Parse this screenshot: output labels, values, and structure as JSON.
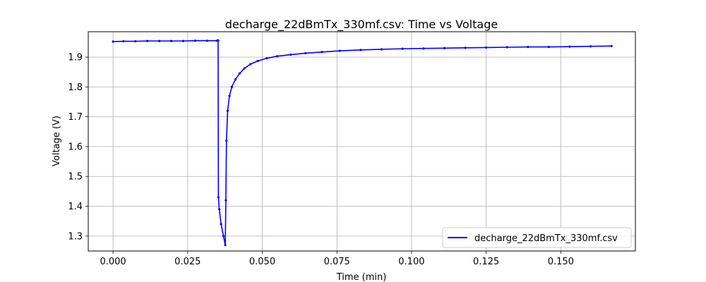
{
  "chart_data": {
    "type": "line",
    "title": "decharge_22dBmTx_330mf.csv: Time vs Voltage",
    "xlabel": "Time (min)",
    "ylabel": "Voltage (V)",
    "xlim": [
      -0.0083,
      0.175
    ],
    "ylim": [
      1.25,
      1.985
    ],
    "xticks": [
      0.0,
      0.025,
      0.05,
      0.075,
      0.1,
      0.125,
      0.15
    ],
    "xtick_labels": [
      "0.000",
      "0.025",
      "0.050",
      "0.075",
      "0.100",
      "0.125",
      "0.150"
    ],
    "yticks": [
      1.3,
      1.4,
      1.5,
      1.6,
      1.7,
      1.8,
      1.9
    ],
    "ytick_labels": [
      "1.3",
      "1.4",
      "1.5",
      "1.6",
      "1.7",
      "1.8",
      "1.9"
    ],
    "grid": true,
    "legend_position": "bottom-right",
    "series": [
      {
        "name": "decharge_22dBmTx_330mf.csv",
        "color": "#0000ff",
        "x": [
          0.0,
          0.0035,
          0.0075,
          0.0115,
          0.0155,
          0.0195,
          0.0235,
          0.0275,
          0.0315,
          0.0348,
          0.0352,
          0.0353,
          0.0356,
          0.0362,
          0.037,
          0.0376,
          0.0378,
          0.038,
          0.0384,
          0.039,
          0.0398,
          0.041,
          0.0424,
          0.044,
          0.046,
          0.0485,
          0.0515,
          0.055,
          0.0595,
          0.0645,
          0.07,
          0.076,
          0.083,
          0.09,
          0.097,
          0.104,
          0.111,
          0.118,
          0.125,
          0.132,
          0.139,
          0.146,
          0.153,
          0.16,
          0.167
        ],
        "y": [
          1.952,
          1.953,
          1.953,
          1.954,
          1.954,
          1.954,
          1.954,
          1.955,
          1.955,
          1.955,
          1.956,
          1.43,
          1.39,
          1.34,
          1.3,
          1.27,
          1.42,
          1.62,
          1.72,
          1.77,
          1.8,
          1.825,
          1.845,
          1.862,
          1.876,
          1.887,
          1.896,
          1.903,
          1.908,
          1.913,
          1.917,
          1.921,
          1.924,
          1.926,
          1.928,
          1.929,
          1.93,
          1.931,
          1.932,
          1.933,
          1.934,
          1.934,
          1.935,
          1.936,
          1.937
        ]
      }
    ]
  }
}
